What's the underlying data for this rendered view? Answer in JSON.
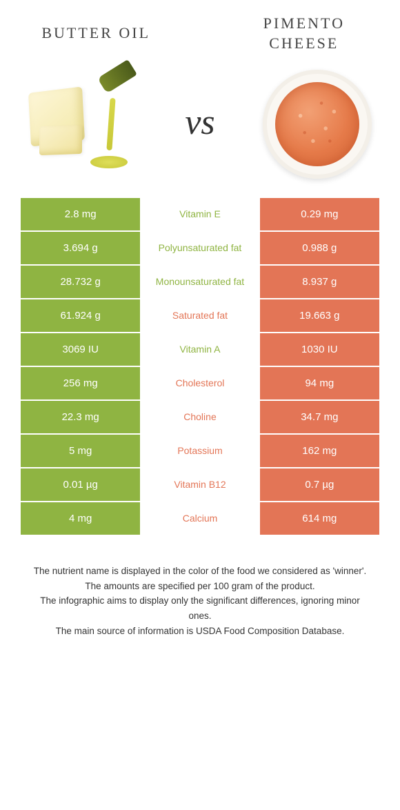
{
  "colors": {
    "left_col": "#8fb442",
    "right_col": "#e37556",
    "left_text": "#8fb442",
    "right_text": "#e37556"
  },
  "title_left": "BUTTER OIL",
  "title_right": "PIMENTO CHEESE",
  "vs_label": "vs",
  "rows": [
    {
      "left": "2.8 mg",
      "label": "Vitamin E",
      "right": "0.29 mg",
      "winner": "left"
    },
    {
      "left": "3.694 g",
      "label": "Polyunsaturated fat",
      "right": "0.988 g",
      "winner": "left"
    },
    {
      "left": "28.732 g",
      "label": "Monounsaturated fat",
      "right": "8.937 g",
      "winner": "left"
    },
    {
      "left": "61.924 g",
      "label": "Saturated fat",
      "right": "19.663 g",
      "winner": "right"
    },
    {
      "left": "3069 IU",
      "label": "Vitamin A",
      "right": "1030 IU",
      "winner": "left"
    },
    {
      "left": "256 mg",
      "label": "Cholesterol",
      "right": "94 mg",
      "winner": "right"
    },
    {
      "left": "22.3 mg",
      "label": "Choline",
      "right": "34.7 mg",
      "winner": "right"
    },
    {
      "left": "5 mg",
      "label": "Potassium",
      "right": "162 mg",
      "winner": "right"
    },
    {
      "left": "0.01 µg",
      "label": "Vitamin B12",
      "right": "0.7 µg",
      "winner": "right"
    },
    {
      "left": "4 mg",
      "label": "Calcium",
      "right": "614 mg",
      "winner": "right"
    }
  ],
  "footnotes": [
    "The nutrient name is displayed in the color of the food we considered as 'winner'.",
    "The amounts are specified per 100 gram of the product.",
    "The infographic aims to display only the significant differences, ignoring minor ones.",
    "The main source of information is USDA Food Composition Database."
  ]
}
